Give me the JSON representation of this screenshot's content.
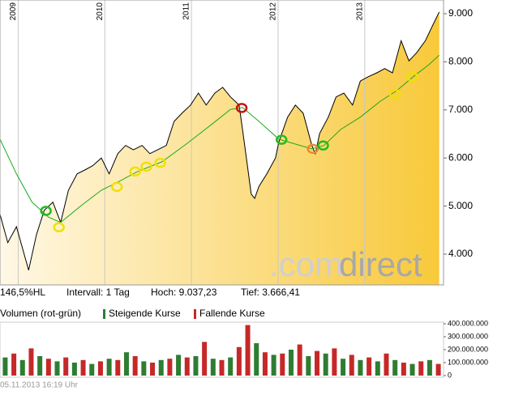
{
  "chart_data": [
    {
      "type": "line",
      "xlim": [
        2008.79,
        2013.91
      ],
      "xticks": [
        2009,
        2010,
        2011,
        2012,
        2013
      ],
      "ylim": [
        3360,
        9286
      ],
      "yticks": [
        {
          "value": 4000,
          "label": "4.000"
        },
        {
          "value": 5000,
          "label": "5.000"
        },
        {
          "value": 6000,
          "label": "6.000"
        },
        {
          "value": 7000,
          "label": "7.000"
        },
        {
          "value": 8000,
          "label": "8.000"
        },
        {
          "value": 9000,
          "label": "9.000"
        }
      ],
      "grid": true,
      "series": [
        {
          "color": "#000000",
          "x": [
            2008.79,
            2008.88,
            2008.98,
            2009.12,
            2009.21,
            2009.3,
            2009.4,
            2009.49,
            2009.58,
            2009.68,
            2009.77,
            2009.86,
            2009.96,
            2010.05,
            2010.15,
            2010.24,
            2010.33,
            2010.43,
            2010.52,
            2010.61,
            2010.71,
            2010.8,
            2010.89,
            2010.99,
            2011.08,
            2011.17,
            2011.27,
            2011.36,
            2011.45,
            2011.55,
            2011.59,
            2011.64,
            2011.69,
            2011.73,
            2011.78,
            2011.87,
            2011.97,
            2012.01,
            2012.11,
            2012.2,
            2012.29,
            2012.39,
            2012.43,
            2012.48,
            2012.58,
            2012.67,
            2012.76,
            2012.86,
            2012.95,
            2013.04,
            2013.14,
            2013.23,
            2013.32,
            2013.42,
            2013.51,
            2013.6,
            2013.7,
            2013.79,
            2013.86
          ],
          "values": [
            4830,
            4240,
            4570,
            3666,
            4400,
            4910,
            5080,
            4660,
            5330,
            5670,
            5750,
            5840,
            6000,
            5670,
            6090,
            6260,
            6170,
            6260,
            6090,
            6170,
            6260,
            6760,
            6930,
            7100,
            7350,
            7100,
            7350,
            7470,
            7270,
            7100,
            6590,
            5920,
            5250,
            5160,
            5410,
            5670,
            6000,
            6340,
            6850,
            7100,
            6930,
            6260,
            6090,
            6510,
            6850,
            7270,
            7350,
            7100,
            7600,
            7690,
            7770,
            7860,
            7770,
            8440,
            8020,
            8190,
            8440,
            8780,
            9037
          ]
        },
        {
          "color": "#1aaa1a",
          "x": [
            2008.79,
            2008.98,
            2009.16,
            2009.35,
            2009.49,
            2009.72,
            2009.96,
            2010.15,
            2010.38,
            2010.66,
            2010.94,
            2011.22,
            2011.45,
            2011.59,
            2011.78,
            2012.01,
            2012.2,
            2012.39,
            2012.53,
            2012.72,
            2012.95,
            2013.18,
            2013.37,
            2013.56,
            2013.74,
            2013.86
          ],
          "values": [
            6390,
            5670,
            5080,
            4770,
            4660,
            5000,
            5330,
            5500,
            5720,
            5920,
            6290,
            6680,
            7010,
            7050,
            6760,
            6390,
            6290,
            6190,
            6260,
            6590,
            6850,
            7180,
            7400,
            7690,
            7940,
            8140
          ]
        }
      ],
      "signals": [
        {
          "x": 2009.32,
          "value": 4900,
          "color": "#22bb22"
        },
        {
          "x": 2009.47,
          "value": 4560,
          "color": "#f0e000"
        },
        {
          "x": 2010.14,
          "value": 5400,
          "color": "#f0e000"
        },
        {
          "x": 2010.35,
          "value": 5720,
          "color": "#f0e000"
        },
        {
          "x": 2010.48,
          "value": 5820,
          "color": "#f0e000"
        },
        {
          "x": 2010.64,
          "value": 5900,
          "color": "#f0e000"
        },
        {
          "x": 2011.58,
          "value": 7040,
          "color": "#cc1111"
        },
        {
          "x": 2012.04,
          "value": 6380,
          "color": "#22bb22"
        },
        {
          "x": 2012.4,
          "value": 6190,
          "color": "#ee8833"
        },
        {
          "x": 2012.52,
          "value": 6260,
          "color": "#22bb22"
        },
        {
          "x": 2013.35,
          "value": 7330,
          "color": "#f0e000"
        },
        {
          "x": 2013.55,
          "value": 7690,
          "color": "#f0e000"
        }
      ],
      "watermark": [
        ".com",
        "direct"
      ],
      "info": [
        "146,5%HL",
        "Intervall: 1 Tag",
        "Hoch: 9.037,23",
        "Tief: 3.666,41"
      ]
    },
    {
      "type": "bar",
      "title": "Volumen (rot-grün)",
      "xlim": [
        2008.79,
        2013.91
      ],
      "ylim": [
        0,
        400000000
      ],
      "yticks": [
        0,
        {
          "value": 100000000,
          "label": "100.000.000"
        },
        {
          "value": 200000000,
          "label": "200.000.000"
        },
        {
          "value": 300000000,
          "label": "300.000.000"
        },
        {
          "value": 400000000,
          "label": "400.000.000"
        }
      ],
      "x": [
        2008.85,
        2008.95,
        2009.05,
        2009.15,
        2009.25,
        2009.35,
        2009.45,
        2009.55,
        2009.65,
        2009.75,
        2009.85,
        2009.95,
        2010.05,
        2010.15,
        2010.25,
        2010.35,
        2010.45,
        2010.55,
        2010.65,
        2010.75,
        2010.85,
        2010.95,
        2011.05,
        2011.15,
        2011.25,
        2011.35,
        2011.45,
        2011.55,
        2011.65,
        2011.75,
        2011.85,
        2011.95,
        2012.05,
        2012.15,
        2012.25,
        2012.35,
        2012.45,
        2012.55,
        2012.65,
        2012.75,
        2012.85,
        2012.95,
        2013.05,
        2013.15,
        2013.25,
        2013.35,
        2013.45,
        2013.55,
        2013.65,
        2013.75,
        2013.85
      ],
      "series": [
        {
          "name": "Steigende Kurse",
          "color": "#2e7d32",
          "values": [
            140000000,
            null,
            120000000,
            null,
            150000000,
            null,
            110000000,
            null,
            100000000,
            null,
            90000000,
            null,
            130000000,
            null,
            180000000,
            null,
            110000000,
            null,
            120000000,
            null,
            160000000,
            null,
            150000000,
            null,
            130000000,
            null,
            140000000,
            null,
            null,
            250000000,
            null,
            160000000,
            null,
            200000000,
            null,
            150000000,
            null,
            170000000,
            null,
            130000000,
            null,
            120000000,
            null,
            110000000,
            null,
            120000000,
            null,
            90000000,
            null,
            120000000,
            null
          ]
        },
        {
          "name": "Fallende Kurse",
          "color": "#c62828",
          "values": [
            null,
            170000000,
            null,
            210000000,
            null,
            130000000,
            null,
            140000000,
            null,
            120000000,
            null,
            110000000,
            null,
            120000000,
            null,
            150000000,
            null,
            100000000,
            null,
            130000000,
            null,
            140000000,
            null,
            260000000,
            null,
            120000000,
            null,
            220000000,
            390000000,
            null,
            180000000,
            null,
            170000000,
            null,
            240000000,
            null,
            190000000,
            null,
            210000000,
            null,
            160000000,
            null,
            140000000,
            null,
            170000000,
            null,
            100000000,
            null,
            110000000,
            null,
            90000000
          ]
        }
      ],
      "footer": "05.11.2013 16:19 Uhr"
    }
  ]
}
